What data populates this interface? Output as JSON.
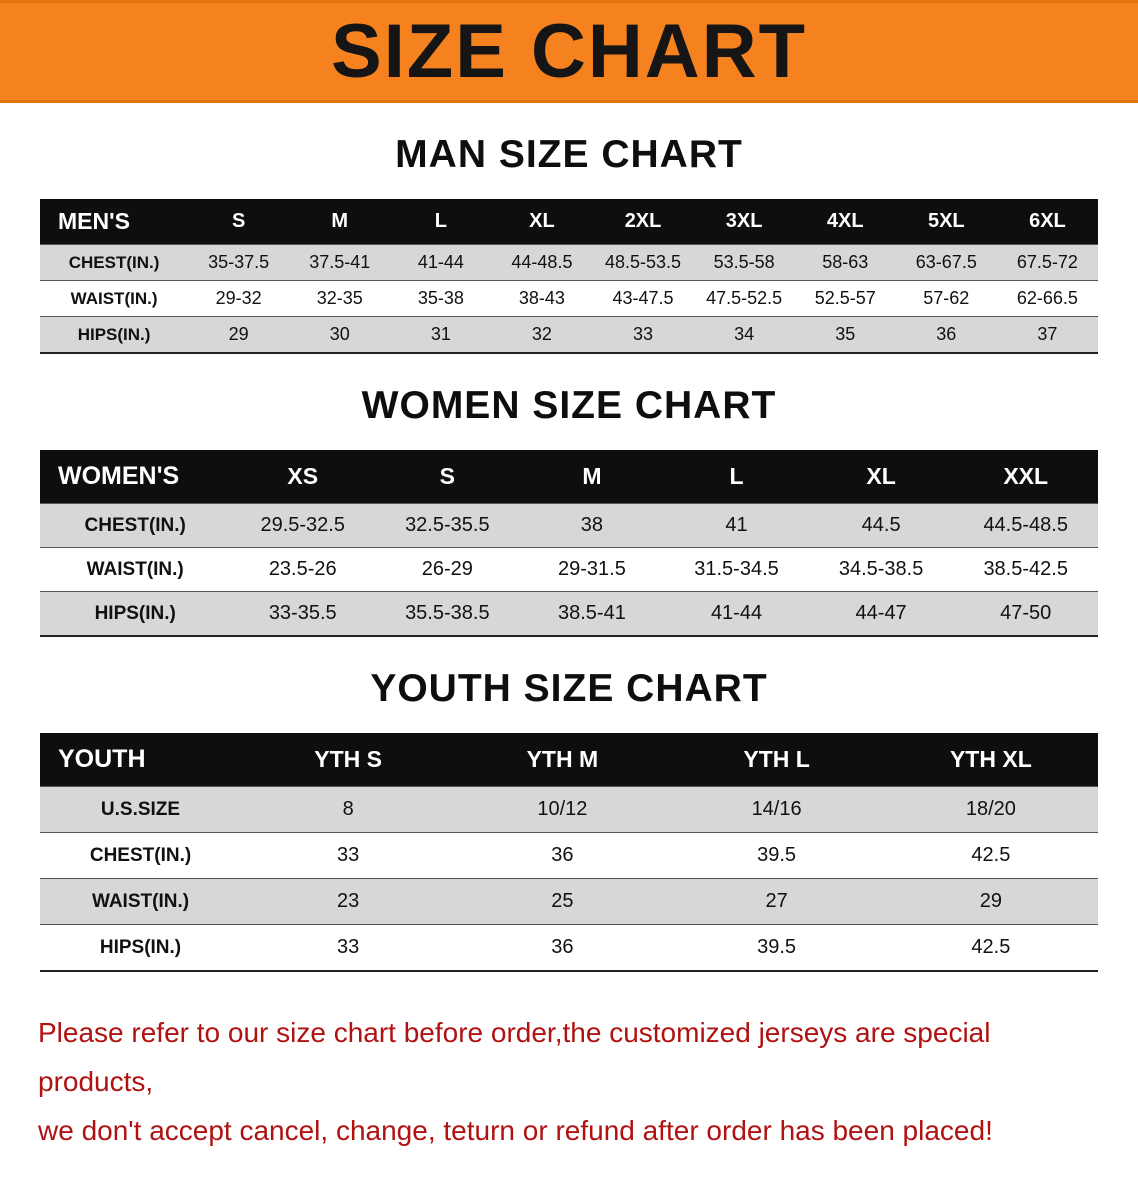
{
  "banner": {
    "title": "SIZE CHART",
    "background_color": "#f5821f"
  },
  "sections": [
    {
      "id": "men",
      "heading": "MAN SIZE CHART",
      "table": {
        "header": [
          "MEN'S",
          "S",
          "M",
          "L",
          "XL",
          "2XL",
          "3XL",
          "4XL",
          "5XL",
          "6XL"
        ],
        "rows": [
          [
            "CHEST(IN.)",
            "35-37.5",
            "37.5-41",
            "41-44",
            "44-48.5",
            "48.5-53.5",
            "53.5-58",
            "58-63",
            "63-67.5",
            "67.5-72"
          ],
          [
            "WAIST(IN.)",
            "29-32",
            "32-35",
            "35-38",
            "38-43",
            "43-47.5",
            "47.5-52.5",
            "52.5-57",
            "57-62",
            "62-66.5"
          ],
          [
            "HIPS(IN.)",
            "29",
            "30",
            "31",
            "32",
            "33",
            "34",
            "35",
            "36",
            "37"
          ]
        ]
      }
    },
    {
      "id": "women",
      "heading": "WOMEN SIZE CHART",
      "table": {
        "header": [
          "WOMEN'S",
          "XS",
          "S",
          "M",
          "L",
          "XL",
          "XXL"
        ],
        "rows": [
          [
            "CHEST(IN.)",
            "29.5-32.5",
            "32.5-35.5",
            "38",
            "41",
            "44.5",
            "44.5-48.5"
          ],
          [
            "WAIST(IN.)",
            "23.5-26",
            "26-29",
            "29-31.5",
            "31.5-34.5",
            "34.5-38.5",
            "38.5-42.5"
          ],
          [
            "HIPS(IN.)",
            "33-35.5",
            "35.5-38.5",
            "38.5-41",
            "41-44",
            "44-47",
            "47-50"
          ]
        ]
      }
    },
    {
      "id": "youth",
      "heading": "YOUTH SIZE CHART",
      "table": {
        "header": [
          "YOUTH",
          "YTH S",
          "YTH M",
          "YTH L",
          "YTH XL"
        ],
        "rows": [
          [
            "U.S.SIZE",
            "8",
            "10/12",
            "14/16",
            "18/20"
          ],
          [
            "CHEST(IN.)",
            "33",
            "36",
            "39.5",
            "42.5"
          ],
          [
            "WAIST(IN.)",
            "23",
            "25",
            "27",
            "29"
          ],
          [
            "HIPS(IN.)",
            "33",
            "36",
            "39.5",
            "42.5"
          ]
        ]
      }
    }
  ],
  "footer": {
    "text_color": "#b01212",
    "lines": [
      "Please refer to our size chart before order,the customized jerseys are special products,",
      "we don't accept cancel, change, teturn or refund after order has been placed!"
    ]
  }
}
